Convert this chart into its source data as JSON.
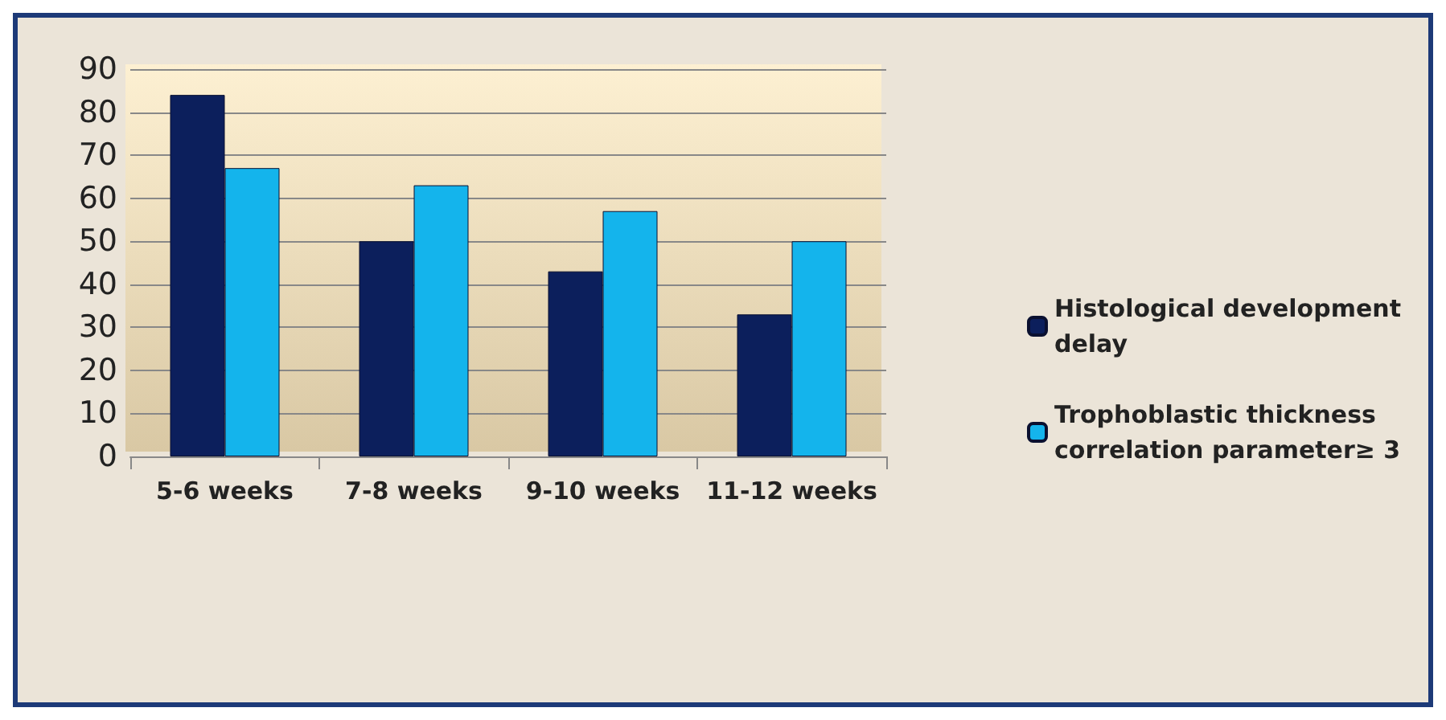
{
  "chart_data": {
    "type": "bar",
    "categories": [
      "5-6 weeks",
      "7-8 weeks",
      "9-10 weeks",
      "11-12 weeks"
    ],
    "series": [
      {
        "name": "Histological development delay",
        "color": "#0c1f5c",
        "values": [
          84,
          50,
          43,
          33
        ]
      },
      {
        "name": "Trophoblastic thickness correlation parameter≥ 3",
        "color": "#14b4ec",
        "values": [
          67,
          63,
          57,
          50
        ]
      }
    ],
    "ylim": [
      0,
      90
    ],
    "yticks": [
      0,
      10,
      20,
      30,
      40,
      50,
      60,
      70,
      80,
      90
    ],
    "grid": "y",
    "legend": "right"
  }
}
